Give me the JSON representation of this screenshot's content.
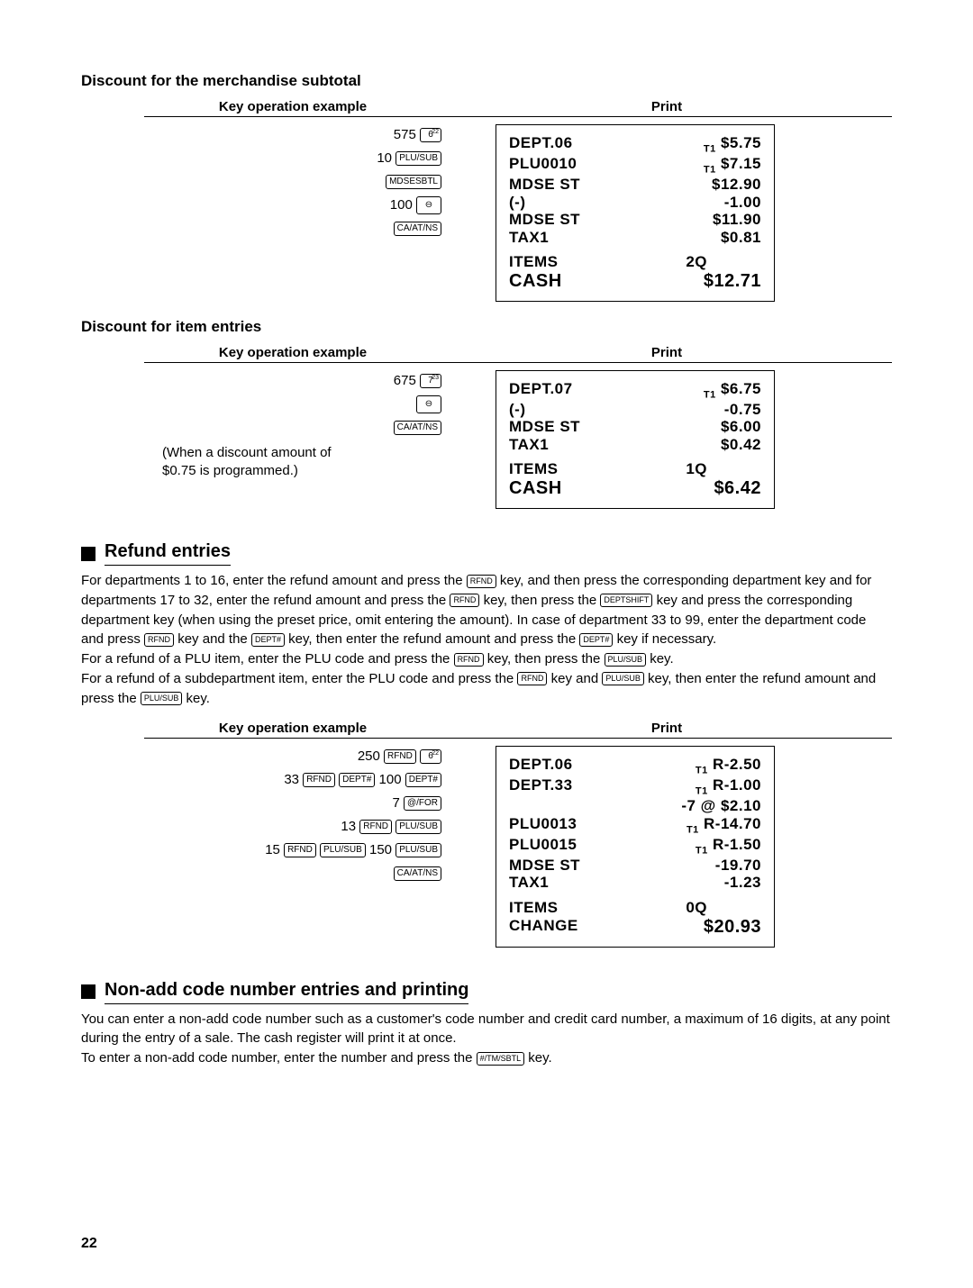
{
  "section1_title": "Discount for the merchandise subtotal",
  "section2_title": "Discount for item entries",
  "th_key": "Key operation example",
  "th_print": "Print",
  "ex1": {
    "keys": [
      {
        "pre": "575 ",
        "cap": "6",
        "sup": "22"
      },
      {
        "pre": "10 ",
        "cap": "PLU/SUB"
      },
      {
        "pre": "",
        "cap": "MDSESBTL"
      },
      {
        "pre": "100 ",
        "cap": "⊖"
      },
      {
        "pre": "",
        "cap": "CA/AT/NS"
      }
    ],
    "receipt": [
      {
        "l": "DEPT.06",
        "r_sub": "T1",
        "r": "$5.75"
      },
      {
        "l": "PLU0010",
        "r_sub": "T1",
        "r": "$7.15"
      },
      {
        "l": "MDSE ST",
        "r": "$12.90"
      },
      {
        "l": "(-)",
        "r": "-1.00"
      },
      {
        "l": "MDSE ST",
        "r": "$11.90"
      },
      {
        "l": "TAX1",
        "r": "$0.81"
      }
    ],
    "items_l": "ITEMS",
    "items_r": "2Q",
    "cash_l": "CASH",
    "cash_r": "$12.71"
  },
  "ex2": {
    "keys": [
      {
        "pre": "675 ",
        "cap": "7",
        "sup": "23"
      },
      {
        "pre": "",
        "cap": "⊖"
      },
      {
        "pre": "",
        "cap": "CA/AT/NS"
      }
    ],
    "note1": "(When a discount amount of",
    "note2": "$0.75 is programmed.)",
    "receipt": [
      {
        "l": "DEPT.07",
        "r_sub": "T1",
        "r": "$6.75"
      },
      {
        "l": "(-)",
        "r": "-0.75"
      },
      {
        "l": "MDSE ST",
        "r": "$6.00"
      },
      {
        "l": "TAX1",
        "r": "$0.42"
      }
    ],
    "items_l": "ITEMS",
    "items_r": "1Q",
    "cash_l": "CASH",
    "cash_r": "$6.42"
  },
  "refund_title": "Refund entries",
  "refund_text": [
    "For departments 1 to 16, enter the refund amount and press the |RFND| key, and then press the corresponding department key and for departments 17 to 32, enter the refund amount and press the |RFND| key, then press the |DEPTSHIFT| key and press the corresponding department key (when using the preset price, omit entering the amount). In case of department 33 to 99, enter the department code and press |RFND| key and the |DEPT#| key, then enter the refund amount and press the |DEPT#| key if necessary.",
    "For a refund of a PLU item, enter the PLU code and press the |RFND| key, then press the |PLU/SUB| key.",
    "For a refund of a subdepartment item, enter the PLU code and press the |RFND| key and |PLU/SUB| key, then enter the refund amount and press the |PLU/SUB| key."
  ],
  "ex3": {
    "keys": [
      {
        "text": "250 |RFND| |6^22|"
      },
      {
        "text": "33 |RFND| |DEPT#| 100 |DEPT#|"
      },
      {
        "text": "7 |@/FOR|"
      },
      {
        "text": "13 |RFND| |PLU/SUB|"
      },
      {
        "text": "15 |RFND| |PLU/SUB| 150 |PLU/SUB|"
      },
      {
        "text": "|CA/AT/NS|"
      }
    ],
    "receipt": [
      {
        "l": "DEPT.06",
        "r_sub": "T1",
        "r": "R-2.50"
      },
      {
        "l": "DEPT.33",
        "r_sub": "T1",
        "r": "R-1.00"
      },
      {
        "l": "",
        "r": "-7 @ $2.10"
      },
      {
        "l": "PLU0013",
        "r_sub": "T1",
        "r": "R-14.70"
      },
      {
        "l": "PLU0015",
        "r_sub": "T1",
        "r": "R-1.50"
      },
      {
        "l": "MDSE ST",
        "r": "-19.70"
      },
      {
        "l": "TAX1",
        "r": "-1.23"
      }
    ],
    "items_l": "ITEMS",
    "items_r": "0Q",
    "change_l": "CHANGE",
    "change_r": "$20.93"
  },
  "nonadd_title": "Non-add code number entries and printing",
  "nonadd_text": [
    "You can enter a non-add code number such as a customer's code number and credit card number, a maximum of 16 digits, at any point during the entry of a sale.  The cash register will print it at once.",
    "To enter a non-add code number, enter the number and press the |#/TM/SBTL| key."
  ],
  "pagenum": "22"
}
